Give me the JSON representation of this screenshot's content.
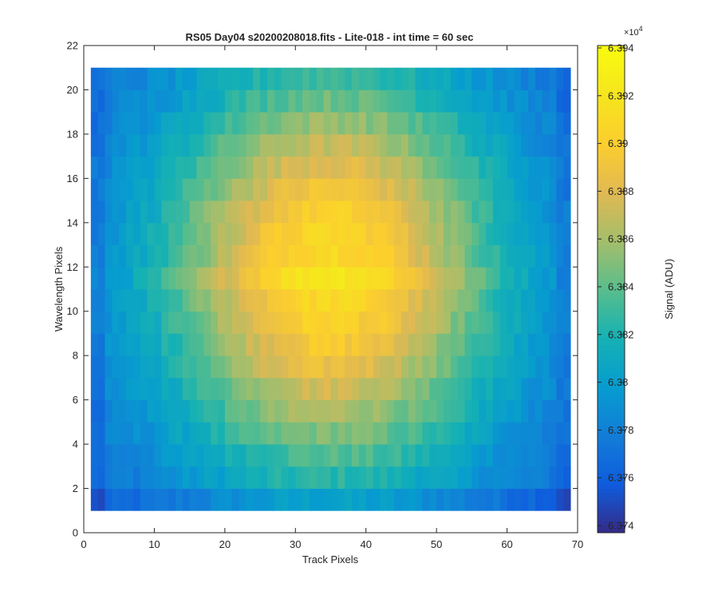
{
  "figure": {
    "title": "RS05 Day04  s20200208018.fits - Lite-018 - int time = 60 sec"
  },
  "colors": {
    "axis": "#262626",
    "background": "#ffffff",
    "colormap": "parula"
  },
  "chart_data": {
    "type": "heatmap",
    "title": "RS05 Day04  s20200208018.fits - Lite-018 - int time = 60 sec",
    "xlabel": "Track Pixels",
    "ylabel": "Wavelength Pixels",
    "xlim": [
      0,
      70
    ],
    "ylim": [
      0,
      22
    ],
    "xticks": [
      0,
      10,
      20,
      30,
      40,
      50,
      60,
      70
    ],
    "yticks": [
      0,
      2,
      4,
      6,
      8,
      10,
      12,
      14,
      16,
      18,
      20,
      22
    ],
    "grid": false,
    "columns": {
      "start": 1,
      "end": 69,
      "count": 68
    },
    "rows": {
      "start": 1,
      "end": 21,
      "count": 20
    },
    "color_scale": [
      6.3737,
      6.3941
    ],
    "colorbar": {
      "label": "Signal (ADU)",
      "multiplier": "×10",
      "exponent": "4",
      "ticks": [
        "6.374",
        "6.376",
        "6.378",
        "6.38",
        "6.382",
        "6.384",
        "6.386",
        "6.388",
        "6.39",
        "6.392",
        "6.394"
      ],
      "tick_values": [
        6.374,
        6.376,
        6.378,
        6.38,
        6.382,
        6.384,
        6.386,
        6.388,
        6.39,
        6.392,
        6.394
      ]
    },
    "pattern": {
      "base": 6.3762,
      "max": 6.3912,
      "peak_row": 11.8,
      "bright_row": {
        "row": 11.5,
        "amplitude": 0.0012
      },
      "noise": 0.0014,
      "edge_dip": 0.0018,
      "bottom_dip": 0.0018
    }
  }
}
